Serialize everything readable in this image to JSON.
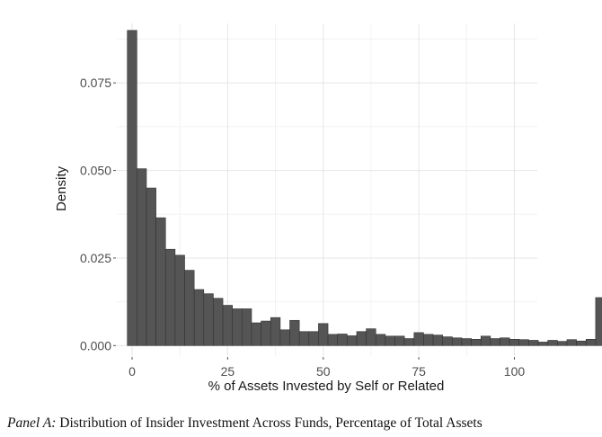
{
  "chart_data": {
    "type": "bar",
    "subtype": "histogram",
    "xlabel": "% of Assets Invested by Self or Related",
    "ylabel": "Density",
    "xlim": [
      -4,
      106
    ],
    "ylim": [
      -0.003,
      0.092
    ],
    "x_ticks": [
      0,
      25,
      50,
      75,
      100
    ],
    "x_tick_labels": [
      "0",
      "25",
      "50",
      "75",
      "100"
    ],
    "y_ticks": [
      0.0,
      0.025,
      0.05,
      0.075
    ],
    "y_tick_labels": [
      "0.000",
      "0.025",
      "0.050",
      "0.075"
    ],
    "grid": true,
    "bin_width": 2.5,
    "bin_start": -1.25,
    "bar_color": "#555555",
    "values": [
      0.09,
      0.0505,
      0.045,
      0.0365,
      0.0275,
      0.0258,
      0.0215,
      0.016,
      0.0148,
      0.0135,
      0.0115,
      0.0105,
      0.0105,
      0.0065,
      0.007,
      0.008,
      0.0045,
      0.0072,
      0.004,
      0.004,
      0.0063,
      0.0032,
      0.0033,
      0.0028,
      0.004,
      0.0048,
      0.0032,
      0.0027,
      0.0027,
      0.002,
      0.0037,
      0.0032,
      0.003,
      0.0025,
      0.0022,
      0.002,
      0.0018,
      0.0027,
      0.002,
      0.0022,
      0.0018,
      0.0017,
      0.0015,
      0.001,
      0.0015,
      0.0012,
      0.0017,
      0.0013,
      0.0018,
      0.0137
    ]
  },
  "caption": {
    "panel_label": "Panel A:",
    "text": " Distribution of Insider Investment Across Funds, Percentage of Total Assets"
  }
}
